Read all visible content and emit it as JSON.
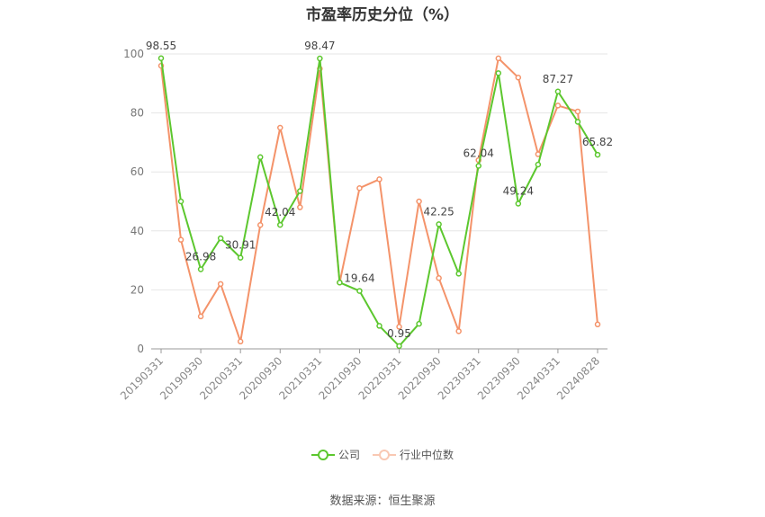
{
  "chart_data": {
    "type": "line",
    "title": "市盈率历史分位（%）",
    "ylim": [
      0,
      100
    ],
    "yticks": [
      0,
      20,
      40,
      60,
      80,
      100
    ],
    "grid": true,
    "legend_position": "bottom",
    "x_tick_labels": [
      "20190331",
      "20190930",
      "20200331",
      "20200930",
      "20210331",
      "20210930",
      "20220331",
      "20220930",
      "20230331",
      "20230930",
      "20240331",
      "20240828"
    ],
    "x": [
      "20190331",
      "20190630",
      "20190930",
      "20191231",
      "20200331",
      "20200630",
      "20200930",
      "20201231",
      "20210331",
      "20210630",
      "20210930",
      "20211231",
      "20220331",
      "20220630",
      "20220930",
      "20221231",
      "20230331",
      "20230630",
      "20230930",
      "20231231",
      "20240331",
      "20240630",
      "20240828"
    ],
    "series": [
      {
        "name": "公司",
        "color": "#5cc72e",
        "values": [
          98.55,
          50,
          26.98,
          37.5,
          30.91,
          65,
          42.04,
          53.5,
          98.47,
          22.5,
          19.64,
          7.8,
          0.95,
          8.5,
          42.25,
          25.5,
          62.04,
          93.5,
          49.24,
          62.5,
          87.27,
          77,
          65.82
        ],
        "labels": [
          "98.55",
          "",
          "26.98",
          "",
          "30.91",
          "",
          "42.04",
          "",
          "98.47",
          "",
          "19.64",
          "",
          "0.95",
          "",
          "42.25",
          "",
          "62.04",
          "",
          "49.24",
          "",
          "87.27",
          "",
          "65.82"
        ]
      },
      {
        "name": "行业中位数",
        "color": "#f4936a",
        "values": [
          96,
          37,
          11,
          22,
          2.5,
          42,
          75,
          48,
          95,
          22.5,
          54.5,
          57.5,
          7.5,
          50,
          24,
          6,
          64,
          98.5,
          92,
          66,
          82.5,
          80.5,
          8.3
        ]
      }
    ]
  },
  "source_text": "数据来源：恒生聚源"
}
